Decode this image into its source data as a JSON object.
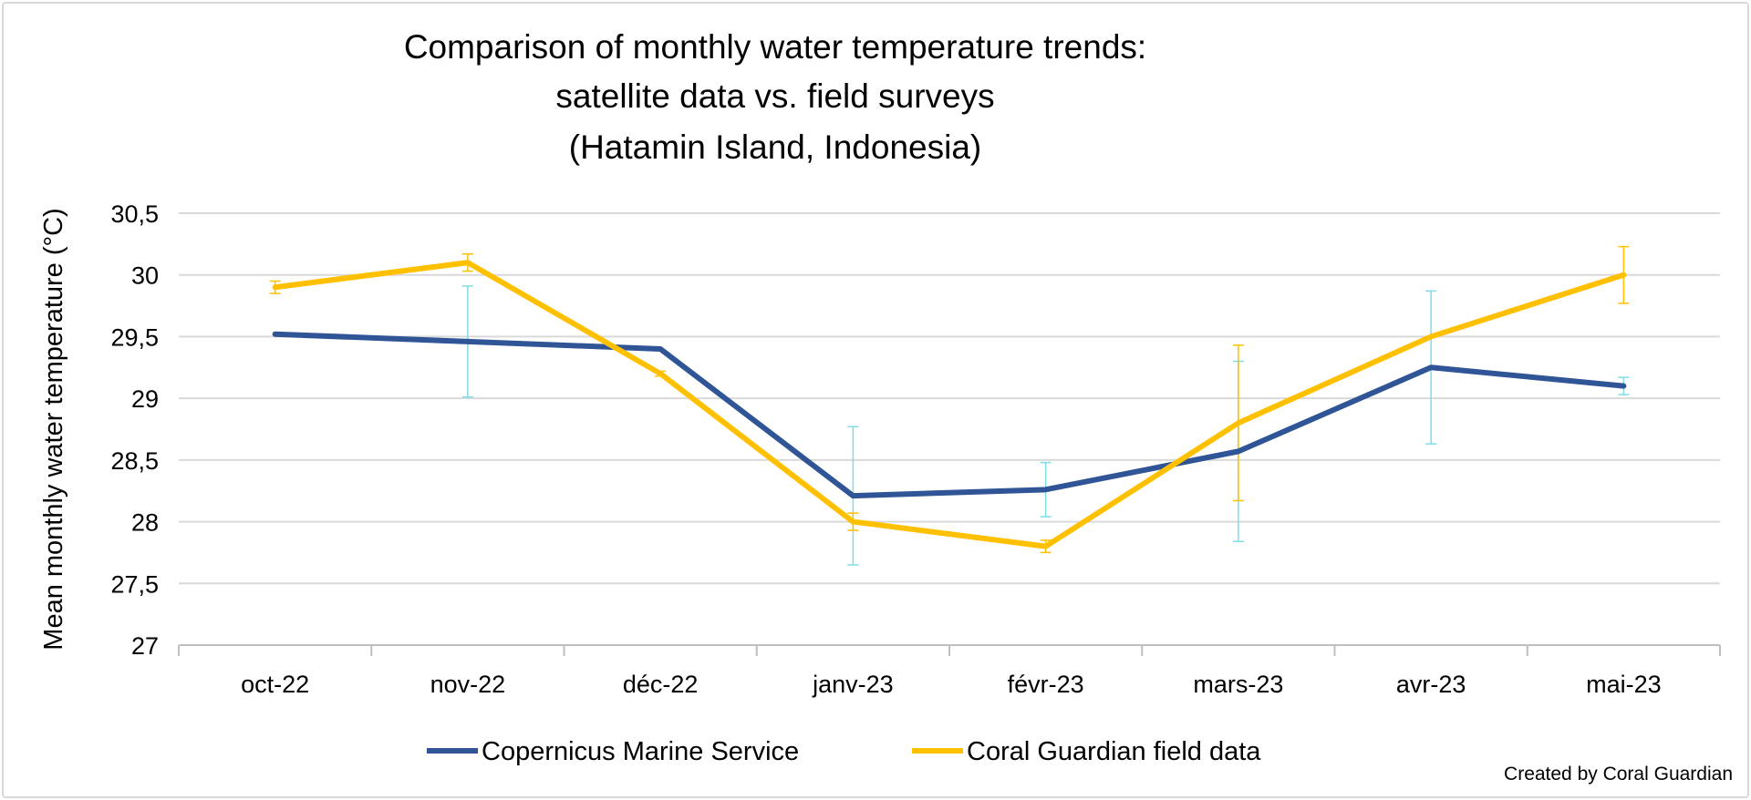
{
  "chart_data": {
    "type": "line",
    "title": [
      "Comparison of monthly water temperature trends:",
      "satellite data vs. field surveys",
      "(Hatamin Island, Indonesia)"
    ],
    "xlabel": "",
    "ylabel": "Mean monthly water temperature (°C)",
    "ylim": [
      27,
      30.5
    ],
    "yticks": [
      "27",
      "27,5",
      "28",
      "28,5",
      "29",
      "29,5",
      "30",
      "30,5"
    ],
    "grid": true,
    "legend": "bottom",
    "categories": [
      "oct-22",
      "nov-22",
      "déc-22",
      "janv-23",
      "févr-23",
      "mars-23",
      "avr-23",
      "mai-23"
    ],
    "series": [
      {
        "name": "Copernicus Marine Service",
        "color": "#2f5597",
        "error_color": "#7fdde8",
        "values": [
          29.52,
          29.46,
          29.4,
          28.21,
          28.26,
          28.57,
          29.25,
          29.1
        ],
        "errors": [
          0,
          0.45,
          0,
          0.56,
          0.22,
          0.73,
          0.62,
          0.07
        ]
      },
      {
        "name": "Coral Guardian field data",
        "color": "#ffc000",
        "error_color": "#ffc000",
        "values": [
          29.9,
          30.1,
          29.2,
          28.0,
          27.8,
          28.8,
          29.5,
          30.0
        ],
        "errors": [
          0.05,
          0.07,
          0.02,
          0.07,
          0.05,
          0.63,
          0,
          0.23
        ]
      }
    ],
    "credit": "Created by Coral Guardian"
  }
}
